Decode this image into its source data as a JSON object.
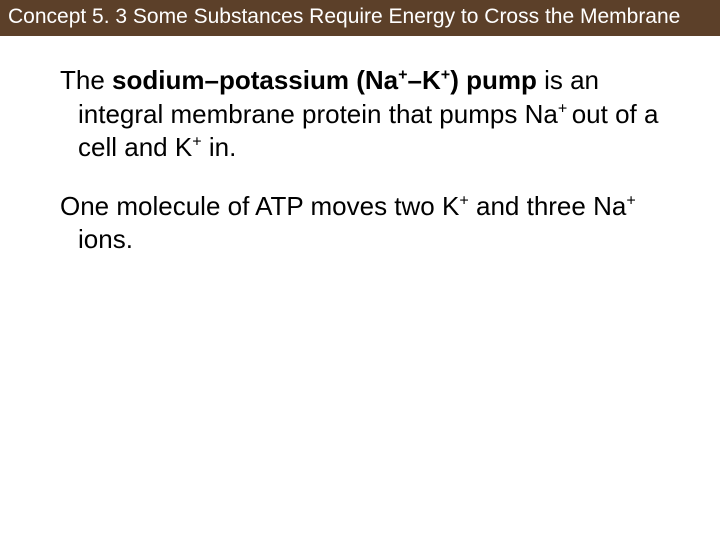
{
  "header": {
    "background_color": "#5c4029",
    "text_color": "#ffffff",
    "title": "Concept 5. 3 Some Substances Require Energy to Cross the Membrane"
  },
  "content": {
    "paragraphs": [
      {
        "runs": [
          {
            "text": "The ",
            "bold": false
          },
          {
            "text": "sodium–potassium",
            "bold": true
          },
          {
            "text": " ",
            "bold": false
          },
          {
            "text": "(Na",
            "bold": true
          },
          {
            "text": "+",
            "bold": true,
            "sup": true
          },
          {
            "text": "–K",
            "bold": true
          },
          {
            "text": "+",
            "bold": true,
            "sup": true
          },
          {
            "text": ") pump",
            "bold": true
          },
          {
            "text": " is an integral membrane protein that pumps Na",
            "bold": false
          },
          {
            "text": "+ ",
            "bold": false,
            "sup": true
          },
          {
            "text": "out of a cell and K",
            "bold": false
          },
          {
            "text": "+",
            "bold": false,
            "sup": true
          },
          {
            "text": " in.",
            "bold": false
          }
        ]
      },
      {
        "runs": [
          {
            "text": "One molecule of ATP moves two K",
            "bold": false
          },
          {
            "text": "+",
            "bold": false,
            "sup": true
          },
          {
            "text": " and three Na",
            "bold": false
          },
          {
            "text": "+ ",
            "bold": false,
            "sup": true
          },
          {
            "text": "ions.",
            "bold": false
          }
        ]
      }
    ]
  },
  "body_background": "#ffffff",
  "body_text_color": "#000000"
}
